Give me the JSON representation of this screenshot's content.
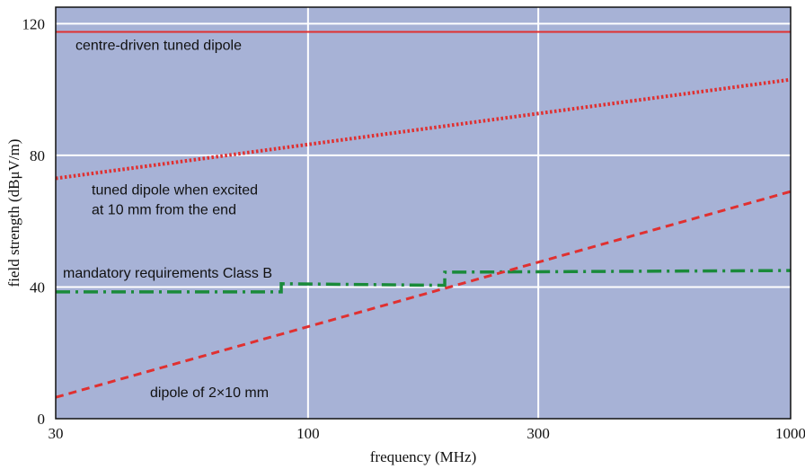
{
  "chart_data": {
    "type": "line",
    "xscale": "log",
    "xlim": [
      30,
      1000
    ],
    "ylim": [
      0,
      125
    ],
    "xlabel": "frequency  (MHz)",
    "ylabel": "field strength (dBμV/m)",
    "xticks": [
      30,
      100,
      300,
      1000
    ],
    "xtick_labels": [
      "30",
      "100",
      "300",
      "1000"
    ],
    "yticks": [
      0,
      40,
      80,
      120
    ],
    "ytick_labels": [
      "0",
      "40",
      "80",
      "120"
    ],
    "grid": true,
    "plot_background": "#a7b2d6",
    "grid_color": "#ffffff",
    "series": [
      {
        "name": "centre-driven tuned dipole",
        "color": "#e03030",
        "style": "solid",
        "x": [
          30,
          1000
        ],
        "y": [
          117.5,
          117.5
        ]
      },
      {
        "name": "tuned dipole when excited at 10 mm from the end",
        "color": "#e03030",
        "style": "dotted",
        "x": [
          30,
          1000
        ],
        "y": [
          73,
          103
        ]
      },
      {
        "name": "mandatory requirements Class B",
        "color": "#1a8a3a",
        "style": "dashdot",
        "x": [
          30,
          88,
          88,
          192,
          192,
          1000
        ],
        "y": [
          38.5,
          38.5,
          41,
          40.5,
          44.5,
          45
        ]
      },
      {
        "name": "dipole of 2×10 mm",
        "color": "#e03030",
        "style": "dashed",
        "x": [
          30,
          1000
        ],
        "y": [
          6.5,
          69
        ]
      }
    ],
    "annotations": [
      {
        "lines": [
          "centre-driven tuned dipole"
        ],
        "x": 30,
        "y": 117.5
      },
      {
        "lines": [
          "tuned dipole when excited",
          "at 10 mm from the end"
        ],
        "x": 30,
        "y": 73
      },
      {
        "lines": [
          "mandatory requirements Class B"
        ],
        "x": 30,
        "y": 44
      },
      {
        "lines": [
          "dipole of 2×10 mm"
        ],
        "x": 30,
        "y": 12
      }
    ]
  }
}
